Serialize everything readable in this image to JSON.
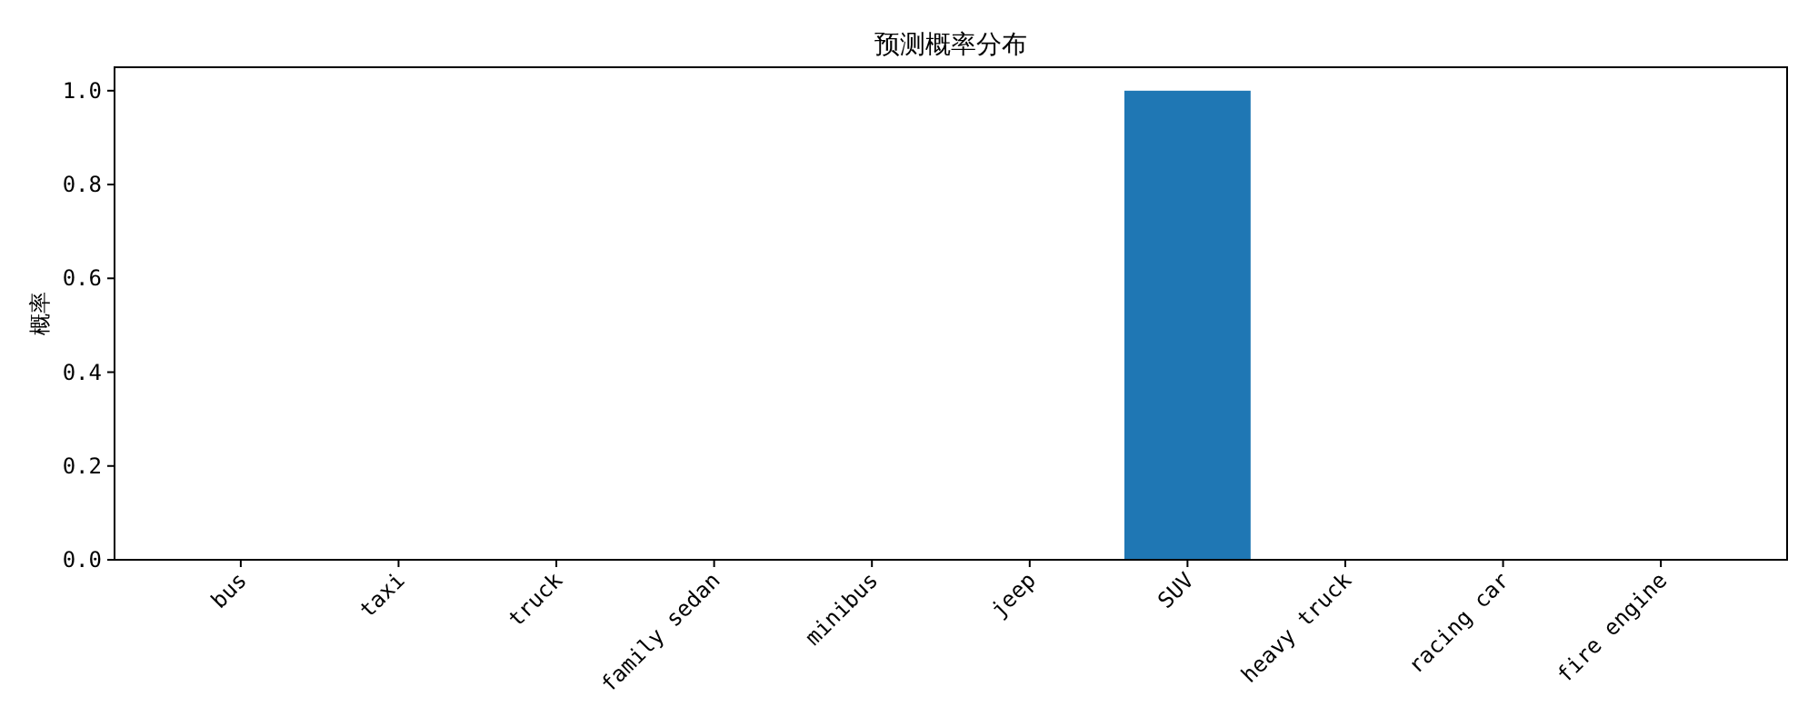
{
  "chart_data": {
    "type": "bar",
    "title": "预测概率分布",
    "ylabel": "概率",
    "categories": [
      "bus",
      "taxi",
      "truck",
      "family sedan",
      "minibus",
      "jeep",
      "SUV",
      "heavy truck",
      "racing car",
      "fire engine"
    ],
    "values": [
      0,
      0,
      0,
      0,
      0,
      0,
      1.0,
      0,
      0,
      0
    ],
    "color": "#1f77b4",
    "ylim": [
      0,
      1.05
    ],
    "yticks": [
      {
        "value": 0,
        "label": "0.0"
      },
      {
        "value": 0.2,
        "label": "0.2"
      },
      {
        "value": 0.4,
        "label": "0.4"
      },
      {
        "value": 0.6,
        "label": "0.6"
      },
      {
        "value": 0.8,
        "label": "0.8"
      },
      {
        "value": 1.0,
        "label": "1.0"
      }
    ]
  }
}
